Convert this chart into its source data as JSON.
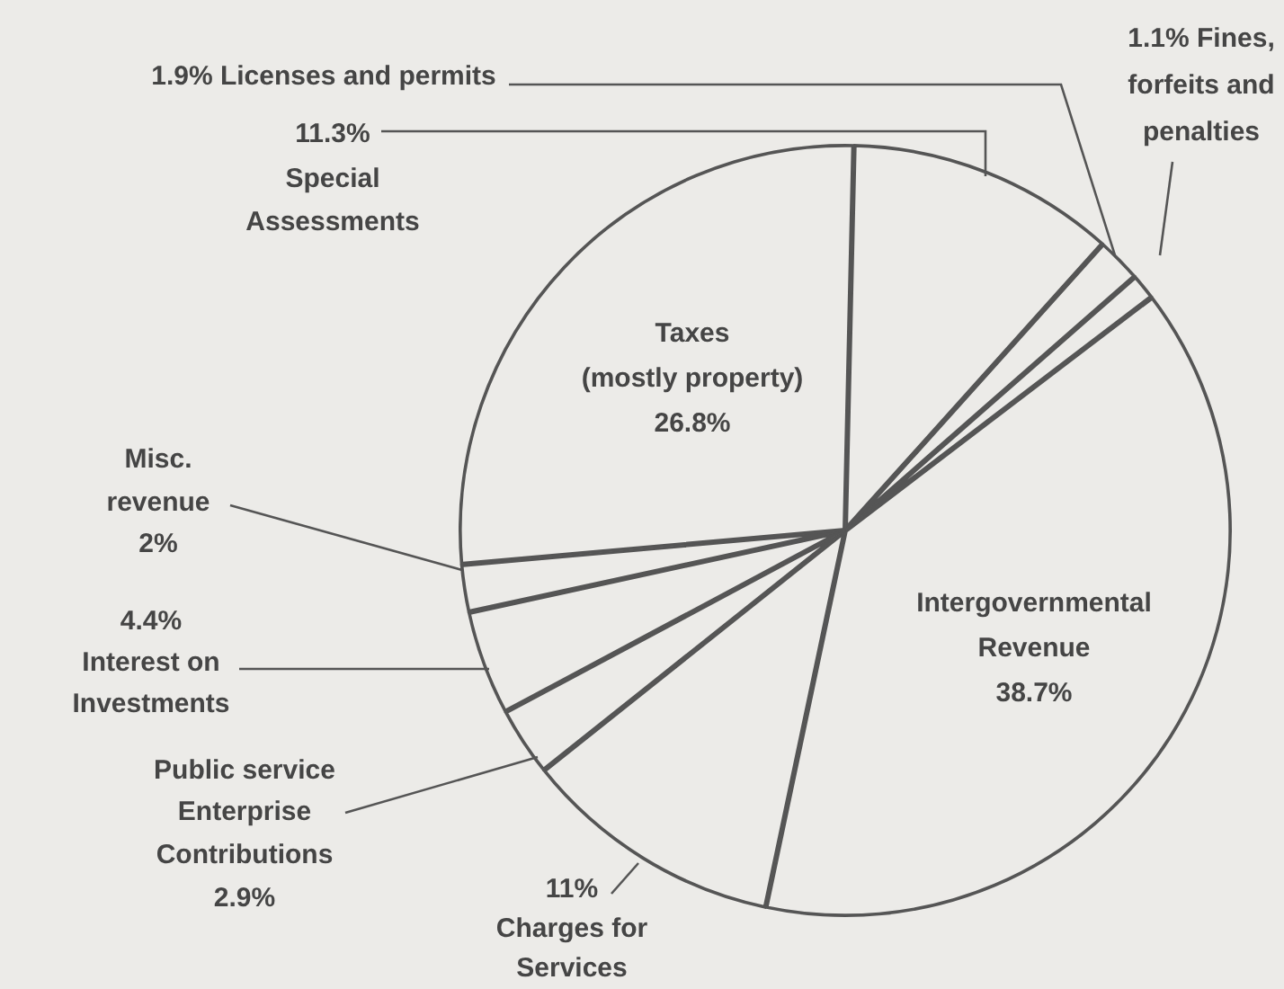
{
  "chart_data": {
    "type": "pie",
    "categories": [
      "Special Assessments",
      "Licenses and permits",
      "Fines, forfeits and penalties",
      "Intergovernmental Revenue",
      "Charges for Services",
      "Public service Enterprise Contributions",
      "Interest on Investments",
      "Misc. revenue",
      "Taxes (mostly property)"
    ],
    "values": [
      11.3,
      1.9,
      1.1,
      38.7,
      11,
      2.9,
      4.4,
      2,
      26.8
    ],
    "value_labels": [
      "11.3%",
      "1.9%",
      "1.1%",
      "38.7%",
      "11%",
      "2.9%",
      "4.4%",
      "2%",
      "26.8%"
    ],
    "colors": [
      "#ecebe8",
      "#ecebe8",
      "#ecebe8",
      "#ecebe8",
      "#ecebe8",
      "#ecebe8",
      "#ecebe8",
      "#ecebe8",
      "#ecebe8"
    ]
  }
}
